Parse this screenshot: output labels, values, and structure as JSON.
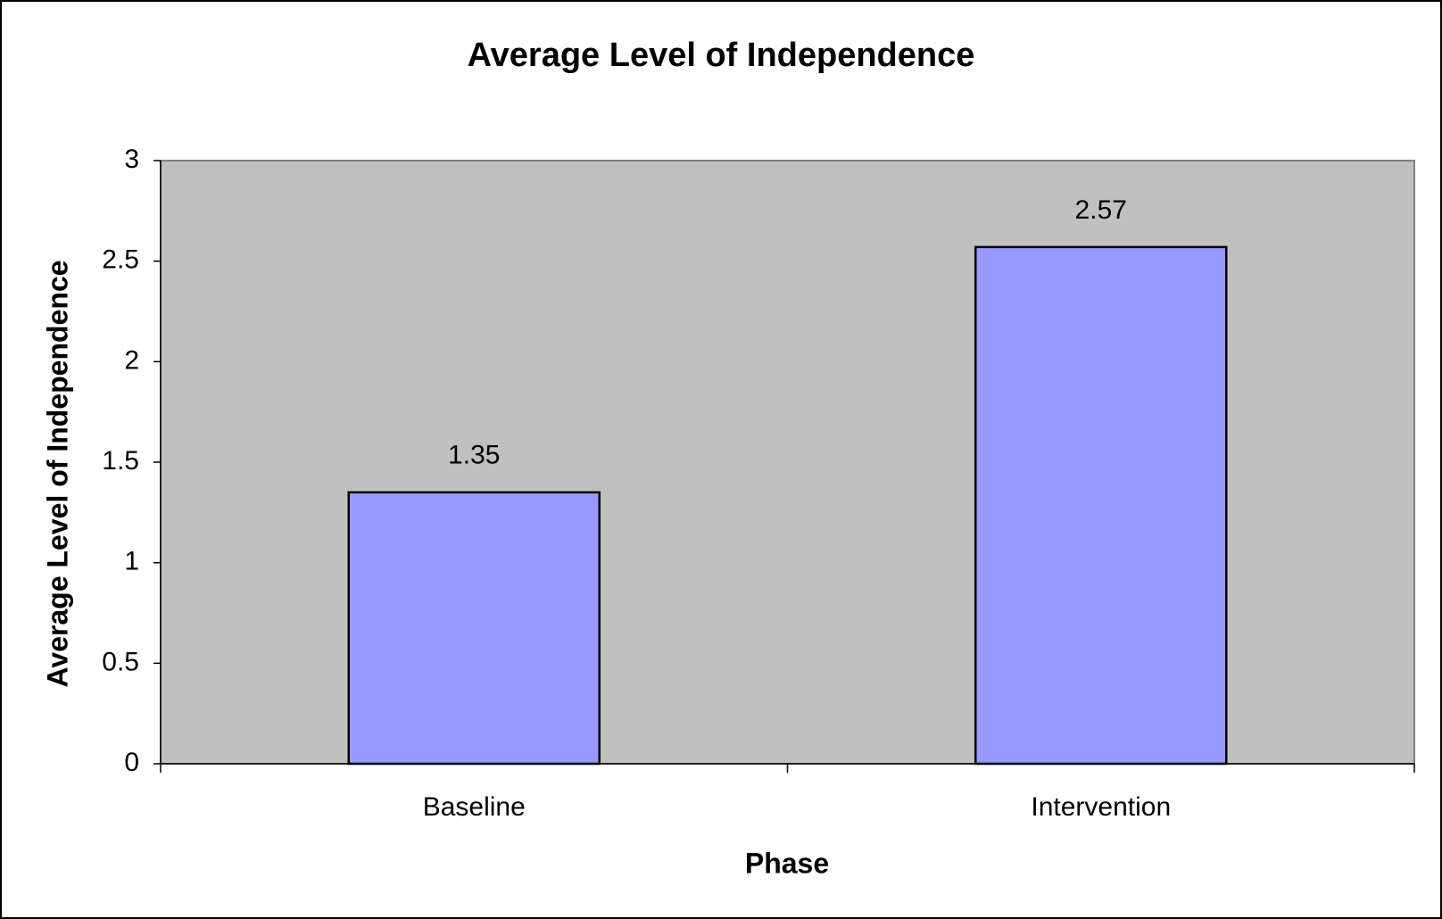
{
  "chart_data": {
    "type": "bar",
    "title": "Average Level of Independence",
    "x_label": "Phase",
    "y_label": "Average Level of Independence",
    "categories": [
      "Baseline",
      "Intervention"
    ],
    "values": [
      1.35,
      2.57
    ],
    "color": "#9999ff",
    "plot_background": "#c0c0c0",
    "ylim": [
      0,
      3
    ],
    "yticks": [
      0,
      0.5,
      1,
      1.5,
      2,
      2.5,
      3
    ]
  }
}
